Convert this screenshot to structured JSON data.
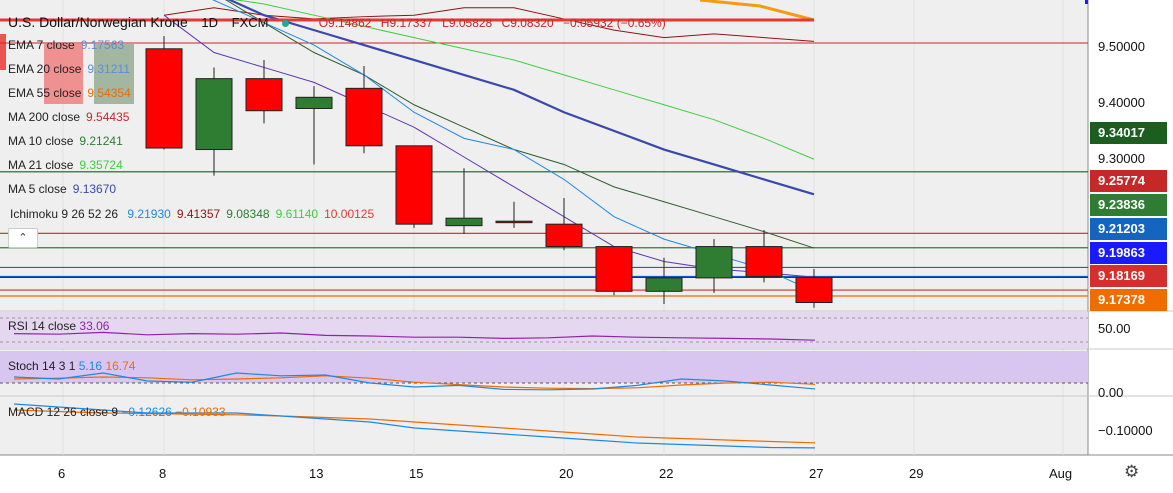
{
  "header": {
    "symbol": "U.S. Dollar/Norwegian Krone",
    "interval": "1D",
    "source": "FXCM",
    "open": "O9.14862",
    "high": "H9.17337",
    "low": "L9.05828",
    "close": "C9.08320",
    "change": "−0.05932 (−0.65%)"
  },
  "legend": [
    {
      "label": "EMA 7 close",
      "value": "9.17563",
      "color": "#5b8ed8"
    },
    {
      "label": "EMA 20 close",
      "value": "9.31211",
      "color": "#5b8ed8"
    },
    {
      "label": "EMA 55 close",
      "value": "9.54354",
      "color": "#ef6c00"
    },
    {
      "label": "MA 200 close",
      "value": "9.54435",
      "color": "#c62828"
    },
    {
      "label": "MA 10 close",
      "value": "9.21241",
      "color": "#2e7d32"
    },
    {
      "label": "MA 21 close",
      "value": "9.35724",
      "color": "#3ecf3e"
    },
    {
      "label": "MA 5 close",
      "value": "9.13670",
      "color": "#3949ab"
    }
  ],
  "ichimoku": {
    "label": "Ichimoku 9 26 52 26",
    "values": [
      {
        "v": "9.21930",
        "color": "#1e88e5"
      },
      {
        "v": "9.41357",
        "color": "#8e1414"
      },
      {
        "v": "9.08348",
        "color": "#2e7d32"
      },
      {
        "v": "9.61140",
        "color": "#3ecf3e"
      },
      {
        "v": "10.00125",
        "color": "#e53935"
      }
    ]
  },
  "price_tags": [
    {
      "value": "9.34017",
      "color": "#1b5e20"
    },
    {
      "value": "9.25774",
      "color": "#c62828"
    },
    {
      "value": "9.23836",
      "color": "#2e7d32"
    },
    {
      "value": "9.21203",
      "color": "#1565c0"
    },
    {
      "value": "9.19863",
      "color": "#1a1aff"
    },
    {
      "value": "9.18169",
      "color": "#d32f2f"
    },
    {
      "value": "9.17378",
      "color": "#ef6c00"
    }
  ],
  "price_axis": [
    "9.50000",
    "9.40000",
    "9.30000"
  ],
  "rsi": {
    "label": "RSI 14 close",
    "value": "33.06",
    "color": "#8e24aa",
    "axis": "50.00",
    "values": [
      44,
      43,
      46,
      42,
      44,
      43,
      45,
      41,
      40,
      38,
      38,
      36,
      37,
      40,
      38,
      37,
      36,
      35,
      33.06
    ]
  },
  "stoch": {
    "label": "Stoch 14 3 1",
    "k": "5.16",
    "d": "16.74",
    "k_color": "#1e88e5",
    "d_color": "#ef6c00",
    "axis": "0.00",
    "k_values": [
      35,
      30,
      45,
      25,
      22,
      45,
      38,
      40,
      20,
      10,
      14,
      4,
      3,
      5,
      14,
      30,
      25,
      15,
      5.16
    ],
    "d_values": [
      30,
      32,
      35,
      33,
      28,
      30,
      33,
      38,
      32,
      22,
      16,
      10,
      7,
      6,
      8,
      15,
      20,
      22,
      16.74
    ]
  },
  "macd": {
    "label": "MACD 12 26 close 9",
    "macd": "−0.12626",
    "signal": "−0.10933",
    "macd_color": "#1e88e5",
    "signal_color": "#ef6c00",
    "axis": "−0.10000",
    "macd_values": [
      0.02,
      0.01,
      0.0,
      -0.01,
      -0.01,
      -0.01,
      -0.02,
      -0.03,
      -0.04,
      -0.06,
      -0.07,
      -0.08,
      -0.09,
      -0.1,
      -0.11,
      -0.115,
      -0.12,
      -0.125,
      -0.12626
    ],
    "signal_values": [
      0.0,
      -0.005,
      -0.01,
      -0.012,
      -0.014,
      -0.016,
      -0.02,
      -0.025,
      -0.03,
      -0.04,
      -0.05,
      -0.06,
      -0.07,
      -0.08,
      -0.09,
      -0.095,
      -0.1,
      -0.105,
      -0.10933
    ]
  },
  "x_axis": [
    "6",
    "8",
    "13",
    "15",
    "20",
    "22",
    "27",
    "29",
    "Aug"
  ],
  "chart_data": {
    "type": "candlestick",
    "title": "U.S. Dollar/Norwegian Krone 1D FXCM",
    "ylim": [
      9.155,
      9.565
    ],
    "candles": [
      {
        "o": 9.505,
        "h": 9.522,
        "l": 9.37,
        "c": 9.372
      },
      {
        "o": 9.37,
        "h": 9.48,
        "l": 9.335,
        "c": 9.465
      },
      {
        "o": 9.465,
        "h": 9.49,
        "l": 9.405,
        "c": 9.422
      },
      {
        "o": 9.425,
        "h": 9.455,
        "l": 9.35,
        "c": 9.44
      },
      {
        "o": 9.452,
        "h": 9.482,
        "l": 9.365,
        "c": 9.375
      },
      {
        "o": 9.375,
        "h": 9.375,
        "l": 9.265,
        "c": 9.27
      },
      {
        "o": 9.268,
        "h": 9.345,
        "l": 9.257,
        "c": 9.278
      },
      {
        "o": 9.274,
        "h": 9.3,
        "l": 9.265,
        "c": 9.273
      },
      {
        "o": 9.27,
        "h": 9.305,
        "l": 9.235,
        "c": 9.24
      },
      {
        "o": 9.24,
        "h": 9.24,
        "l": 9.175,
        "c": 9.18
      },
      {
        "o": 9.18,
        "h": 9.225,
        "l": 9.163,
        "c": 9.198
      },
      {
        "o": 9.198,
        "h": 9.25,
        "l": 9.178,
        "c": 9.24
      },
      {
        "o": 9.24,
        "h": 9.262,
        "l": 9.192,
        "c": 9.2
      },
      {
        "o": 9.19863,
        "h": 9.21,
        "l": 9.158,
        "c": 9.165
      }
    ],
    "ema7": [
      9.6,
      9.57,
      9.54,
      9.51,
      9.47,
      9.42,
      9.385,
      9.37,
      9.33,
      9.28,
      9.25,
      9.23,
      9.21,
      9.18
    ],
    "ema20": [
      9.6,
      9.58,
      9.55,
      9.53,
      9.51,
      9.49,
      9.47,
      9.45,
      9.42,
      9.395,
      9.37,
      9.35,
      9.33,
      9.31
    ],
    "ma200": [
      9.55,
      9.56,
      9.55,
      9.545,
      9.548,
      9.55,
      9.56,
      9.56,
      9.545,
      9.53,
      9.52,
      9.525,
      9.52,
      9.515
    ],
    "ma10": [
      9.62,
      9.58,
      9.54,
      9.5,
      9.47,
      9.43,
      9.4,
      9.37,
      9.35,
      9.32,
      9.3,
      9.28,
      9.26,
      9.238
    ],
    "ma21": [
      9.59,
      9.575,
      9.565,
      9.55,
      9.535,
      9.52,
      9.505,
      9.49,
      9.47,
      9.45,
      9.43,
      9.41,
      9.385,
      9.357
    ],
    "ma5": [
      9.55,
      9.5,
      9.48,
      9.46,
      9.43,
      9.4,
      9.36,
      9.32,
      9.28,
      9.24,
      9.22,
      9.21,
      9.205,
      9.199
    ],
    "kijun": [
      9.55,
      9.55,
      9.52,
      9.51,
      9.51,
      9.53,
      9.535,
      9.53,
      9.52,
      9.42,
      9.42,
      9.42,
      9.42,
      9.414
    ],
    "hlines": [
      {
        "y": 9.34017,
        "color": "#1b5e20"
      },
      {
        "y": 9.25774,
        "color": "#c62828"
      },
      {
        "y": 9.23836,
        "color": "#2e7d32"
      },
      {
        "y": 9.21203,
        "color": "#1565c0"
      },
      {
        "y": 9.2,
        "color": "#1565c0"
      },
      {
        "y": 9.19863,
        "color": "#1a1aff"
      },
      {
        "y": 9.18169,
        "color": "#d32f2f"
      },
      {
        "y": 9.17378,
        "color": "#ef6c00"
      }
    ]
  }
}
